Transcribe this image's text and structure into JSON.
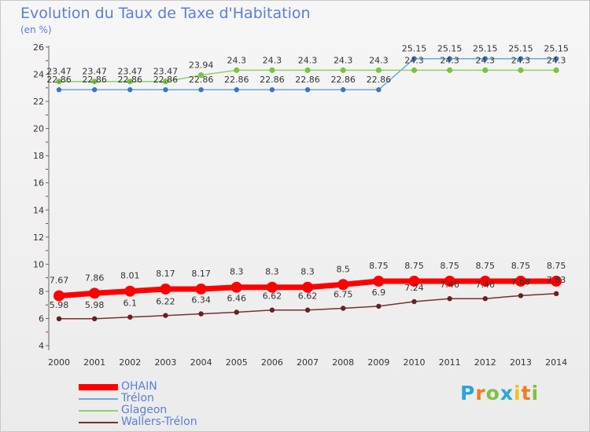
{
  "title": "Evolution du Taux de Taxe d'Habitation",
  "unit_label": "(en %)",
  "logo": {
    "letters": [
      "P",
      "r",
      "o",
      "x",
      "i",
      "t",
      "i"
    ],
    "colors": [
      "#2aa4e0",
      "#f07c20",
      "#7cc242",
      "#2aa4e0",
      "#f0c020",
      "#f07c20",
      "#7cc242"
    ]
  },
  "chart_data": {
    "type": "line",
    "title": "Evolution du Taux de Taxe d'Habitation",
    "ylabel": "(en %)",
    "xlabel": "",
    "ylim": [
      4,
      26
    ],
    "yticks": [
      "4",
      "6",
      "8",
      "10",
      "12",
      "14",
      "16",
      "18",
      "20",
      "22",
      "24",
      "26"
    ],
    "x": [
      "2000",
      "2001",
      "2002",
      "2003",
      "2004",
      "2005",
      "2006",
      "2007",
      "2008",
      "2009",
      "2010",
      "2011",
      "2012",
      "2013",
      "2014"
    ],
    "grid": false,
    "legend_position": "bottom-left",
    "series": [
      {
        "name": "OHAIN",
        "color": "#ff0000",
        "values": [
          7.67,
          7.86,
          8.01,
          8.17,
          8.17,
          8.3,
          8.3,
          8.3,
          8.5,
          8.75,
          8.75,
          8.75,
          8.75,
          8.75,
          8.75
        ],
        "labels": [
          "7.67",
          "7.86",
          "8.01",
          "8.17",
          "8.17",
          "8.3",
          "8.3",
          "8.3",
          "8.5",
          "8.75",
          "8.75",
          "8.75",
          "8.75",
          "8.75",
          "8.75"
        ]
      },
      {
        "name": "Trélon",
        "color": "#6fa8dc",
        "values": [
          22.86,
          22.86,
          22.86,
          22.86,
          22.86,
          22.86,
          22.86,
          22.86,
          22.86,
          22.86,
          25.15,
          25.15,
          25.15,
          25.15,
          25.15
        ],
        "labels": [
          "22.86",
          "22.86",
          "22.86",
          "22.86",
          "22.86",
          "22.86",
          "22.86",
          "22.86",
          "22.86",
          "22.86",
          "25.15",
          "25.15",
          "25.15",
          "25.15",
          "25.15"
        ]
      },
      {
        "name": "Glageon",
        "color": "#8fd16a",
        "values": [
          23.47,
          23.47,
          23.47,
          23.47,
          23.94,
          24.3,
          24.3,
          24.3,
          24.3,
          24.3,
          24.3,
          24.3,
          24.3,
          24.3,
          24.3
        ],
        "labels": [
          "23.47",
          "23.47",
          "23.47",
          "23.47",
          "23.94",
          "24.3",
          "24.3",
          "24.3",
          "24.3",
          "24.3",
          "24.3",
          "24.3",
          "24.3",
          "24.3",
          "24.3"
        ]
      },
      {
        "name": "Wallers-Trélon",
        "color": "#7a2f2f",
        "values": [
          5.98,
          5.98,
          6.1,
          6.22,
          6.34,
          6.46,
          6.62,
          6.62,
          6.75,
          6.9,
          7.24,
          7.46,
          7.46,
          7.68,
          7.83
        ],
        "labels": [
          "5.98",
          "5.98",
          "6.1",
          "6.22",
          "6.34",
          "6.46",
          "6.62",
          "6.62",
          "6.75",
          "6.9",
          "7.24",
          "7.46",
          "7.46",
          "7.68",
          "7.83"
        ]
      }
    ]
  }
}
